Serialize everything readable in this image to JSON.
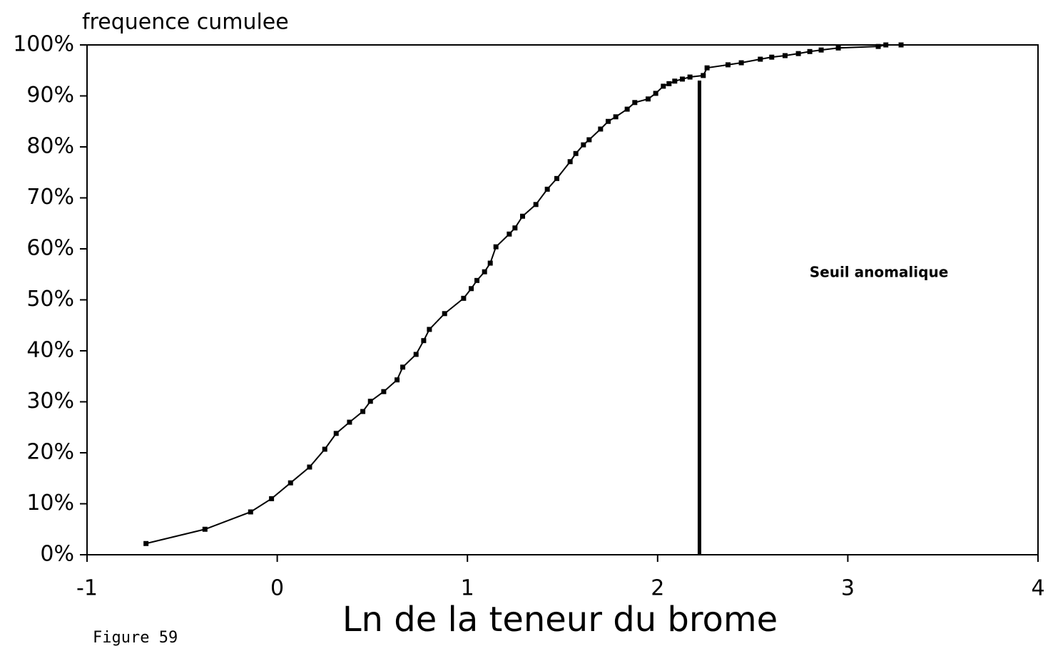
{
  "chart_data": {
    "type": "line",
    "y_axis_title": "frequence cumulee",
    "x_axis_title": "Ln de la teneur du brome",
    "figure_label": "Figure 59",
    "annotation": "Seuil anomalique",
    "threshold": {
      "x": 2.22,
      "y": 93
    },
    "color": "#000000",
    "x": [
      -0.69,
      -0.38,
      -0.14,
      -0.03,
      0.07,
      0.17,
      0.25,
      0.31,
      0.38,
      0.45,
      0.49,
      0.56,
      0.63,
      0.66,
      0.73,
      0.77,
      0.8,
      0.88,
      0.98,
      1.02,
      1.05,
      1.09,
      1.12,
      1.15,
      1.22,
      1.25,
      1.29,
      1.36,
      1.42,
      1.47,
      1.54,
      1.57,
      1.61,
      1.64,
      1.7,
      1.74,
      1.78,
      1.84,
      1.88,
      1.95,
      1.99,
      2.03,
      2.06,
      2.09,
      2.13,
      2.17,
      2.24,
      2.26,
      2.37,
      2.44,
      2.54,
      2.6,
      2.67,
      2.74,
      2.8,
      2.86,
      2.95,
      3.16,
      3.2,
      3.28
    ],
    "values": [
      2.2,
      5.0,
      8.4,
      11.0,
      14.1,
      17.2,
      20.7,
      23.8,
      26.0,
      28.1,
      30.1,
      32.0,
      34.3,
      36.8,
      39.3,
      42.0,
      44.2,
      47.3,
      50.3,
      52.2,
      53.8,
      55.5,
      57.2,
      60.4,
      62.9,
      64.1,
      66.4,
      68.7,
      71.7,
      73.8,
      77.1,
      78.7,
      80.4,
      81.4,
      83.5,
      85.0,
      85.9,
      87.4,
      88.7,
      89.4,
      90.5,
      91.9,
      92.4,
      92.9,
      93.3,
      93.7,
      94.0,
      95.5,
      96.1,
      96.5,
      97.2,
      97.6,
      97.9,
      98.3,
      98.7,
      99.0,
      99.4,
      99.7,
      100,
      100
    ],
    "xlim": [
      -1,
      4
    ],
    "xticks": [
      -1,
      0,
      1,
      2,
      3,
      4
    ],
    "ylim": [
      0,
      100
    ],
    "yticks": [
      {
        "value": 0,
        "label": "0%"
      },
      {
        "value": 10,
        "label": "10%"
      },
      {
        "value": 20,
        "label": "20%"
      },
      {
        "value": 30,
        "label": "30%"
      },
      {
        "value": 40,
        "label": "40%"
      },
      {
        "value": 50,
        "label": "50%"
      },
      {
        "value": 60,
        "label": "60%"
      },
      {
        "value": 70,
        "label": "70%"
      },
      {
        "value": 80,
        "label": "80%"
      },
      {
        "value": 90,
        "label": "90%"
      },
      {
        "value": 100,
        "label": "100%"
      }
    ]
  }
}
